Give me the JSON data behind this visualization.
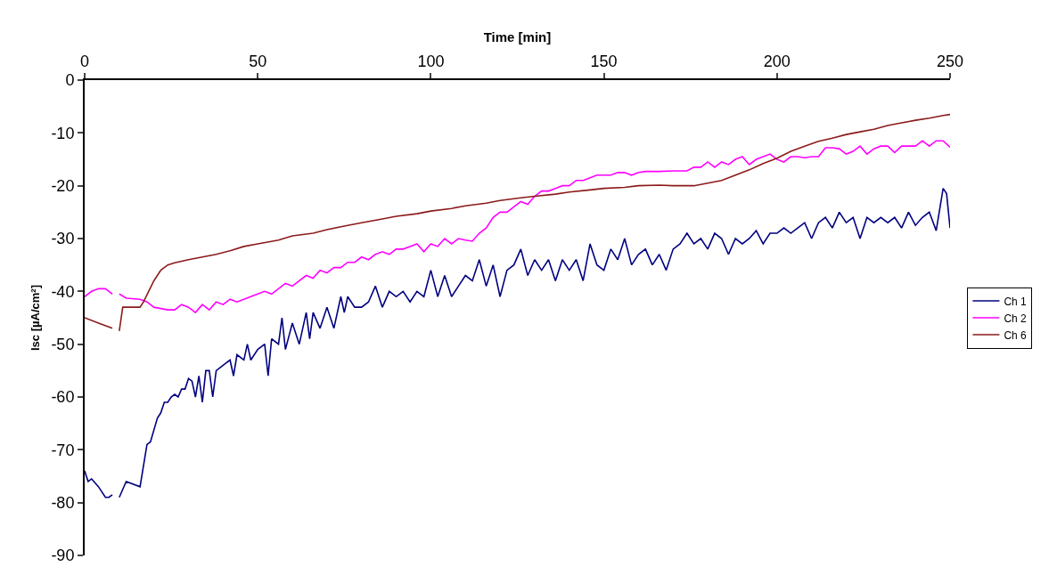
{
  "chart_data": {
    "type": "line",
    "xlabel": "Time [min]",
    "ylabel": "Isc [µA/cm²]",
    "xlim": [
      0,
      250
    ],
    "xticks": [
      0,
      50,
      100,
      150,
      200,
      250
    ],
    "ylim": [
      -90,
      0
    ],
    "yticks": [
      0,
      -10,
      -20,
      -30,
      -40,
      -50,
      -60,
      -70,
      -80,
      -90
    ],
    "grid": false,
    "legend": "right",
    "marker": "none",
    "line_style": "solid",
    "series": [
      {
        "name": "Ch 1",
        "color": "#000080",
        "x": [
          0,
          1,
          2,
          4,
          6,
          7,
          8,
          9,
          10,
          12,
          16,
          18,
          19,
          21,
          22,
          23,
          24,
          25,
          26,
          27,
          28,
          29,
          30,
          31,
          32,
          33,
          34,
          35,
          36,
          37,
          38,
          40,
          42,
          43,
          44,
          46,
          47,
          48,
          50,
          52,
          53,
          54,
          56,
          57,
          58,
          60,
          62,
          64,
          65,
          66,
          68,
          70,
          72,
          74,
          75,
          76,
          78,
          80,
          82,
          84,
          86,
          88,
          90,
          92,
          94,
          96,
          98,
          100,
          102,
          104,
          106,
          108,
          110,
          112,
          114,
          116,
          118,
          120,
          122,
          124,
          126,
          128,
          130,
          132,
          134,
          136,
          138,
          140,
          142,
          144,
          146,
          148,
          150,
          152,
          154,
          156,
          158,
          160,
          162,
          164,
          166,
          168,
          170,
          172,
          174,
          176,
          178,
          180,
          182,
          184,
          186,
          188,
          190,
          192,
          194,
          196,
          198,
          200,
          202,
          204,
          206,
          208,
          210,
          212,
          214,
          216,
          218,
          220,
          222,
          224,
          226,
          228,
          230,
          232,
          234,
          236,
          238,
          240,
          242,
          244,
          246,
          248,
          249,
          250
        ],
        "values": [
          -74,
          -76,
          -75.5,
          -77,
          -79,
          -79,
          -78.5,
          null,
          -79,
          -76,
          -77,
          -69,
          -68.5,
          -64,
          -63,
          -61,
          -61,
          -60,
          -59.5,
          -60,
          -58.5,
          -58.5,
          -56.5,
          -57,
          -60,
          -56,
          -61,
          -55,
          -55,
          -60,
          -55,
          -54,
          -53,
          -56,
          -52,
          -53,
          -50,
          -53,
          -51,
          -50,
          -56,
          -49,
          -50,
          -45,
          -51,
          -46,
          -50,
          -44,
          -49,
          -44,
          -47,
          -43,
          -47,
          -41,
          -44,
          -41,
          -43,
          -43,
          -42,
          -39,
          -43,
          -40,
          -41,
          -40,
          -42,
          -40,
          -41,
          -36,
          -41,
          -37,
          -41,
          -39,
          -37,
          -38,
          -34,
          -39,
          -35,
          -41,
          -36,
          -35,
          -32,
          -37,
          -34,
          -36,
          -34,
          -38,
          -34,
          -36,
          -34,
          -38,
          -31,
          -35,
          -36,
          -32,
          -34,
          -30,
          -35,
          -33,
          -32,
          -35,
          -33,
          -36,
          -32,
          -31,
          -29,
          -31,
          -30,
          -32,
          -29,
          -30,
          -33,
          -30,
          -31,
          -30,
          -28.5,
          -31,
          -29,
          -29,
          -28,
          -29,
          -28,
          -27,
          -30,
          -27,
          -26,
          -28,
          -25,
          -27,
          -26,
          -30,
          -26,
          -27,
          -26,
          -27,
          -26,
          -28,
          -25,
          -27.5,
          -26,
          -25,
          -28.5,
          -20.5,
          -21.5,
          -28
        ]
      },
      {
        "name": "Ch 2",
        "color": "#ff00ff",
        "x": [
          0,
          2,
          4,
          6,
          8,
          9,
          10,
          12,
          16,
          18,
          20,
          24,
          26,
          28,
          30,
          32,
          34,
          36,
          38,
          40,
          42,
          44,
          46,
          48,
          50,
          52,
          54,
          56,
          58,
          60,
          62,
          64,
          66,
          68,
          70,
          72,
          74,
          76,
          78,
          80,
          82,
          84,
          86,
          88,
          90,
          92,
          94,
          96,
          98,
          100,
          102,
          104,
          106,
          108,
          110,
          112,
          114,
          116,
          118,
          120,
          122,
          124,
          126,
          128,
          130,
          132,
          134,
          136,
          138,
          140,
          142,
          144,
          146,
          148,
          150,
          152,
          154,
          156,
          158,
          160,
          162,
          164,
          166,
          170,
          174,
          176,
          178,
          180,
          182,
          184,
          186,
          188,
          190,
          192,
          194,
          196,
          198,
          200,
          202,
          204,
          206,
          208,
          210,
          212,
          214,
          216,
          218,
          220,
          222,
          224,
          226,
          228,
          230,
          232,
          234,
          236,
          238,
          240,
          242,
          244,
          246,
          248,
          250
        ],
        "values": [
          -41,
          -40,
          -39.5,
          -39.5,
          -40.5,
          null,
          -40.5,
          -41.3,
          -41.5,
          -42,
          -43,
          -43.5,
          -43.5,
          -42.5,
          -43,
          -44,
          -42.5,
          -43.5,
          -42,
          -42.5,
          -41.5,
          -42,
          -41.5,
          -41,
          -40.5,
          -40,
          -40.5,
          -39.5,
          -38.5,
          -39,
          -38,
          -37,
          -37.5,
          -36,
          -36.5,
          -35.5,
          -35.5,
          -34.5,
          -34.5,
          -33.5,
          -34,
          -33,
          -32.5,
          -33,
          -32,
          -32,
          -31.5,
          -31,
          -32.5,
          -31,
          -31.5,
          -30,
          -31,
          -30,
          -30.3,
          -30.5,
          -29,
          -28,
          -26,
          -25,
          -25,
          -24,
          -23,
          -23.5,
          -22,
          -21,
          -21,
          -20.5,
          -20,
          -20,
          -19,
          -19,
          -18.5,
          -18,
          -18,
          -18,
          -17.5,
          -17.5,
          -18,
          -17.5,
          -17.3,
          -17.3,
          -17.3,
          -17.2,
          -17.2,
          -16.5,
          -16.5,
          -15.5,
          -16.5,
          -15.5,
          -16,
          -15,
          -14.5,
          -16,
          -15,
          -14.5,
          -14,
          -15,
          -15.5,
          -14.5,
          -14.5,
          -14.7,
          -14.5,
          -14.5,
          -12.8,
          -12.8,
          -13,
          -14,
          -13.5,
          -12.5,
          -14,
          -13,
          -12.5,
          -12.5,
          -13.7,
          -12.5,
          -12.5,
          -12.5,
          -11.5,
          -12.5,
          -11.5,
          -11.5,
          -12.7
        ]
      },
      {
        "name": "Ch 6",
        "color": "#8b1a1a",
        "x": [
          0,
          4,
          8,
          9,
          10,
          11,
          16,
          17,
          20,
          22,
          24,
          26,
          30,
          34,
          38,
          42,
          46,
          50,
          56,
          60,
          66,
          70,
          76,
          80,
          86,
          90,
          96,
          100,
          106,
          110,
          116,
          120,
          126,
          130,
          136,
          140,
          146,
          150,
          156,
          160,
          166,
          170,
          176,
          180,
          184,
          188,
          192,
          196,
          200,
          204,
          208,
          212,
          216,
          220,
          224,
          228,
          232,
          236,
          240,
          244,
          248,
          250
        ],
        "values": [
          -45,
          -46,
          -47,
          null,
          -47.5,
          -43,
          -43,
          -42,
          -38,
          -36,
          -35,
          -34.6,
          -34,
          -33.5,
          -33,
          -32.3,
          -31.5,
          -31,
          -30.3,
          -29.5,
          -29,
          -28.3,
          -27.5,
          -27,
          -26.3,
          -25.8,
          -25.3,
          -24.8,
          -24.3,
          -23.8,
          -23.3,
          -22.8,
          -22.3,
          -22,
          -21.6,
          -21.2,
          -20.8,
          -20.5,
          -20.3,
          -20,
          -19.9,
          -20,
          -20,
          -19.5,
          -19,
          -18,
          -17,
          -15.8,
          -14.8,
          -13.5,
          -12.5,
          -11.6,
          -11,
          -10.3,
          -9.8,
          -9.3,
          -8.6,
          -8.1,
          -7.6,
          -7.2,
          -6.7,
          -6.5
        ]
      }
    ]
  }
}
